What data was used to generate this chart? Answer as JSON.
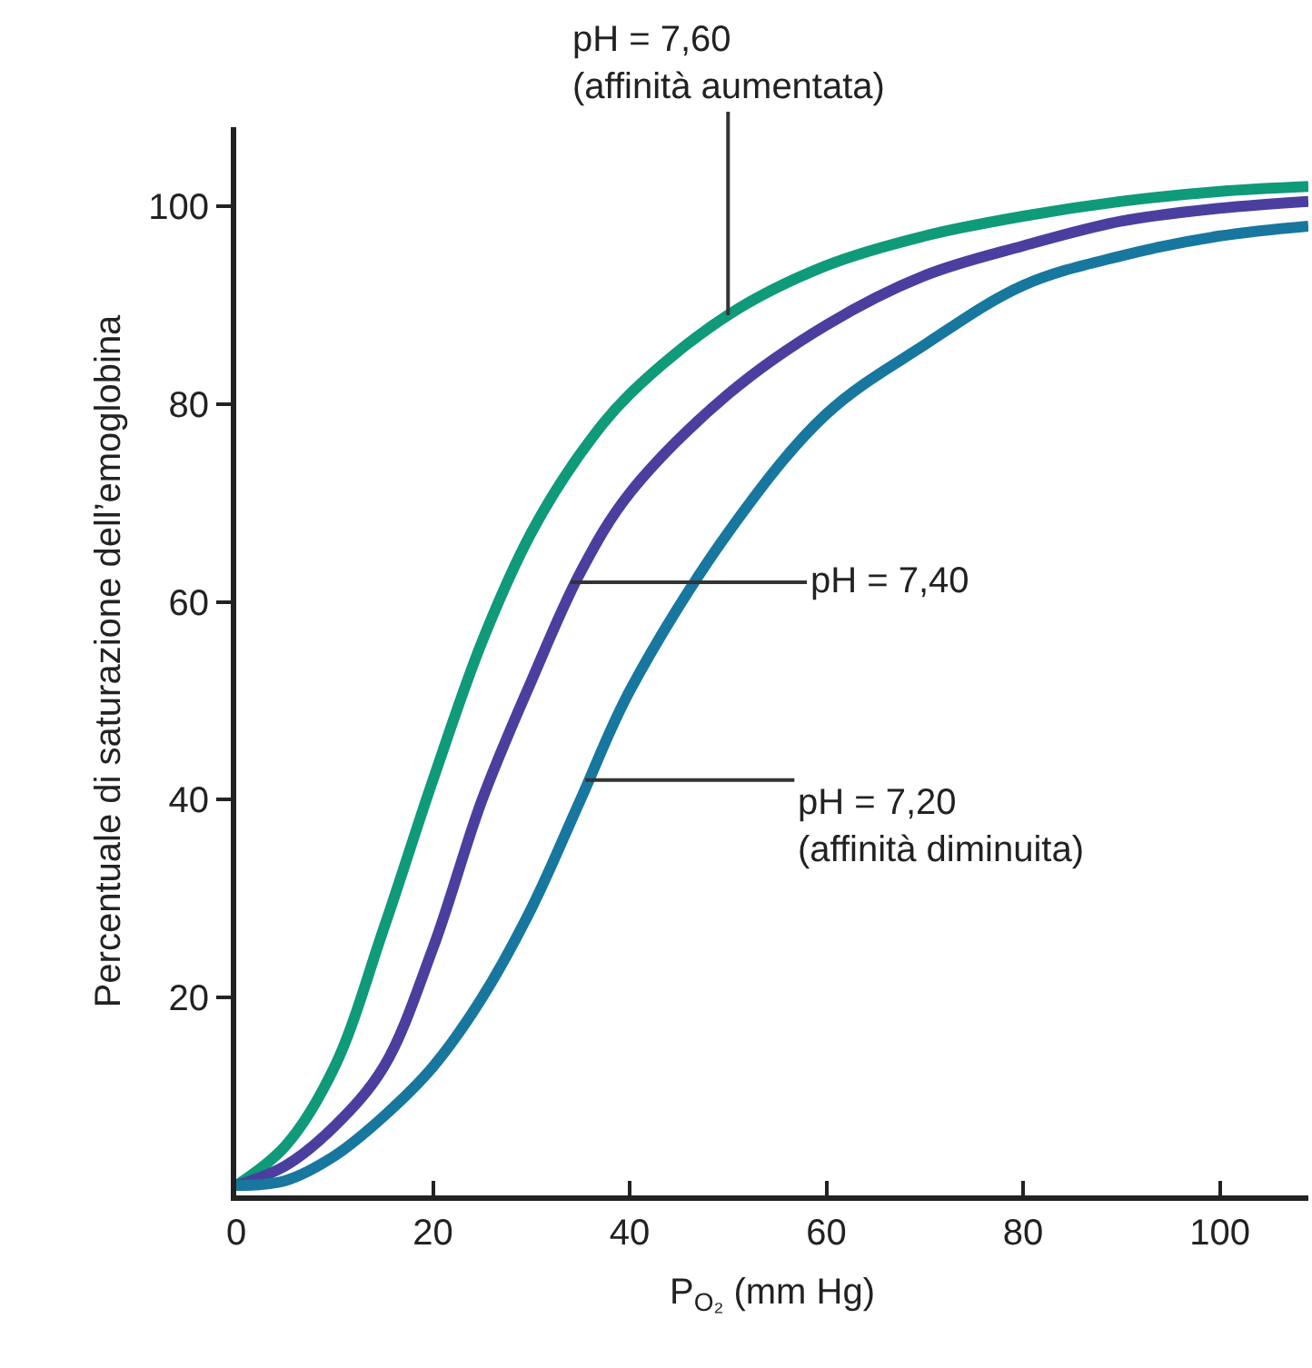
{
  "chart_data": {
    "type": "line",
    "xlabel": "P$_{O₂}$ (mm Hg)",
    "ylabel": "Percentuale di saturazione dell’emoglobina",
    "xlim": [
      0,
      109
    ],
    "ylim": [
      0,
      108
    ],
    "xticks": [
      0,
      20,
      40,
      60,
      80,
      100
    ],
    "yticks": [
      20,
      40,
      60,
      80,
      100
    ],
    "marker": "none",
    "line_style": "solid",
    "x": [
      0,
      5,
      10,
      15,
      20,
      25,
      30,
      35,
      40,
      50,
      60,
      70,
      80,
      90,
      100,
      109
    ],
    "series": [
      {
        "color": "#0f9a7a",
        "values": [
          1,
          5,
          13,
          27,
          42,
          56,
          67,
          75,
          81,
          89,
          94,
          97,
          99,
          100.5,
          101.5,
          102
        ]
      },
      {
        "color": "#4a3f9e",
        "values": [
          1,
          3,
          7,
          13,
          25,
          40,
          52,
          63,
          71,
          81,
          88,
          93,
          96,
          98.5,
          99.8,
          100.5
        ]
      },
      {
        "color": "#17779f",
        "values": [
          1,
          1.5,
          4,
          8,
          13,
          20,
          29,
          40,
          51,
          67,
          79,
          86,
          92,
          95,
          97,
          98
        ]
      }
    ],
    "annotations": [
      {
        "text": "pH = 7,60\n(affinità aumentata)",
        "x": 50,
        "y": 89
      },
      {
        "text": "pH = 7,40",
        "x": 34,
        "y": 62
      },
      {
        "text": "pH = 7,20\n(affinità diminuita)",
        "x": 35.5,
        "y": 42
      }
    ]
  }
}
